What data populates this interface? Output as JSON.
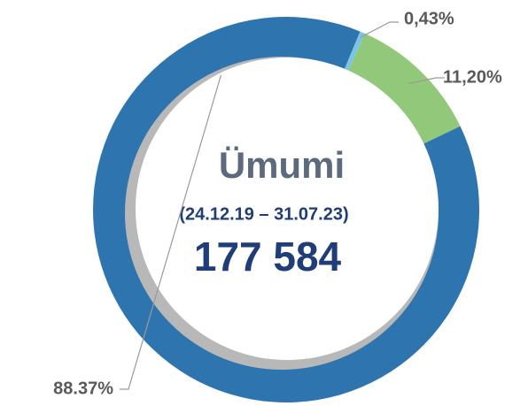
{
  "chart_data": {
    "type": "donut",
    "title": "Ümumi",
    "subtitle": "(24.12.19 – 31.07.23)",
    "annotations": [
      "177 584"
    ],
    "categories": [
      null,
      null,
      null
    ],
    "values": [
      0.43,
      11.2,
      88.37
    ],
    "value_labels": [
      "0,43%",
      "11,20%",
      "88.37%"
    ],
    "colors": [
      "#7cc3e6",
      "#92c87a",
      "#2e75b0"
    ]
  }
}
